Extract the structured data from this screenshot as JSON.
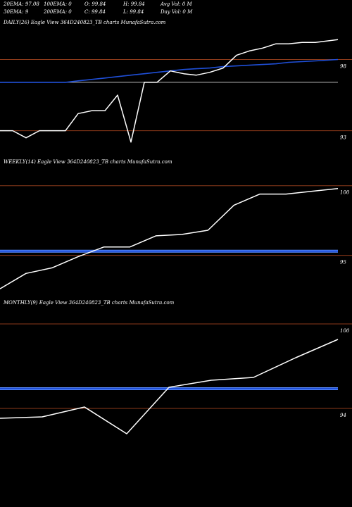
{
  "header": {
    "row1": [
      "20EMA: 97.08",
      "100EMA: 0",
      "O: 99.84",
      "H: 99.84",
      "Avg Vol: 0  M"
    ],
    "row2": [
      "30EMA: 9",
      "200EMA: 0",
      "C: 99.84",
      "L: 99.84",
      "Day Vol: 0  M"
    ]
  },
  "colors": {
    "background": "#000000",
    "price": "#ffffff",
    "ema": "#1f4fd8",
    "ema_highlight": "#5a8cff",
    "hline": "#8b3a1a",
    "neutral_line": "#bbbbbb"
  },
  "chart_data": [
    {
      "type": "line",
      "title": "DAILY(26) Eagle  View  364D240823_TB charts MunafaSutra.com",
      "ylim": [
        91.3,
        100.2
      ],
      "yticks": [
        93,
        98
      ],
      "x": [
        1,
        2,
        3,
        4,
        5,
        6,
        7,
        8,
        9,
        10,
        11,
        12,
        13,
        14,
        15,
        16,
        17,
        18,
        19,
        20,
        21,
        22,
        23,
        24,
        25,
        26
      ],
      "series": [
        {
          "values": [
            93.0,
            93.0,
            92.5,
            93.0,
            93.0,
            93.0,
            94.2,
            94.4,
            94.4,
            95.5,
            92.2,
            96.4,
            96.4,
            97.2,
            97.0,
            96.9,
            97.1,
            97.4,
            98.3,
            98.6,
            98.8,
            99.1,
            99.1,
            99.2,
            99.2,
            99.4
          ]
        },
        {
          "values": [
            96.4,
            96.4,
            96.4,
            96.4,
            96.4,
            96.4,
            96.5,
            96.6,
            96.7,
            96.8,
            96.9,
            97.0,
            97.1,
            97.2,
            97.3,
            97.35,
            97.4,
            97.5,
            97.55,
            97.6,
            97.65,
            97.7,
            97.8,
            97.85,
            97.9,
            98.0
          ]
        }
      ],
      "reference_line": 96.4
    },
    {
      "type": "line",
      "title": "WEEKLY(14) Eagle  View  364D240823_TB charts MunafaSutra.com",
      "ylim": [
        92.2,
        101.3
      ],
      "yticks": [
        95,
        100
      ],
      "x": [
        1,
        2,
        3,
        4,
        5,
        6,
        7,
        8,
        9,
        10,
        11,
        12,
        13,
        14
      ],
      "series": [
        {
          "values": [
            92.6,
            93.7,
            94.1,
            94.9,
            95.6,
            95.6,
            96.4,
            96.5,
            96.8,
            98.6,
            99.4,
            99.4,
            99.6,
            99.8
          ]
        },
        {
          "values": [
            95.3,
            95.3,
            95.3,
            95.3,
            95.3,
            95.3,
            95.3,
            95.3,
            95.3,
            95.3,
            95.3,
            95.3,
            95.3,
            95.3
          ]
        }
      ]
    },
    {
      "type": "line",
      "title": "MONTHLY(9) Eagle  View  364D240823_TB charts MunafaSutra.com",
      "ylim": [
        91.0,
        101.0
      ],
      "yticks": [
        94,
        100
      ],
      "x": [
        1,
        2,
        3,
        4,
        5,
        6,
        7,
        8,
        9
      ],
      "series": [
        {
          "values": [
            93.3,
            93.4,
            94.1,
            92.2,
            95.5,
            96.0,
            96.2,
            97.6,
            98.9
          ]
        },
        {
          "values": [
            95.4,
            95.4,
            95.4,
            95.4,
            95.4,
            95.4,
            95.4,
            95.4,
            95.4
          ]
        }
      ]
    }
  ]
}
